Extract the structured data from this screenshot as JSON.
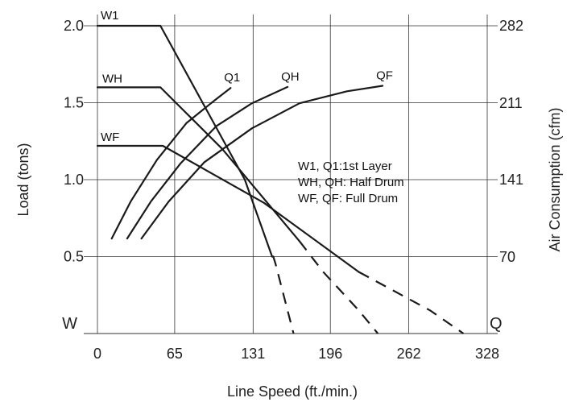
{
  "chart_data": {
    "type": "line",
    "title": "",
    "xlabel": "Line Speed (ft./min.)",
    "ylabel": "Load (tons)",
    "y2label": "Air Consumption (cfm)",
    "xlim": [
      0,
      328
    ],
    "ylim": [
      0,
      2.0
    ],
    "y2lim": [
      0,
      282
    ],
    "x_ticks": [
      "0",
      "65",
      "131",
      "196",
      "262",
      "328"
    ],
    "y_ticks": [
      "0.5",
      "1.0",
      "1.5",
      "2.0"
    ],
    "y2_ticks": [
      "70",
      "141",
      "211",
      "282"
    ],
    "grid": true,
    "corner_left": "W",
    "corner_right": "Q",
    "notes": [
      "W1, Q1:1st Layer",
      "WH, QH: Half Drum",
      "WF, QF: Full Drum"
    ],
    "series": [
      {
        "name": "W1",
        "axis": "left",
        "solid": [
          [
            0,
            2.0
          ],
          [
            53,
            2.0
          ],
          [
            124,
            1.0
          ],
          [
            147,
            0.5
          ]
        ],
        "dashed": [
          [
            147,
            0.5
          ],
          [
            148,
            0.5
          ],
          [
            150,
            0.45
          ],
          [
            155,
            0.3
          ],
          [
            160,
            0.15
          ],
          [
            165,
            0.0
          ]
        ],
        "color": "#1a1a1a"
      },
      {
        "name": "WH",
        "axis": "left",
        "solid": [
          [
            0,
            1.6
          ],
          [
            53,
            1.6
          ],
          [
            105,
            1.2
          ],
          [
            170,
            0.6
          ]
        ],
        "dashed": [
          [
            170,
            0.6
          ],
          [
            190,
            0.4
          ],
          [
            220,
            0.15
          ],
          [
            236,
            0.0
          ]
        ],
        "color": "#1a1a1a"
      },
      {
        "name": "WF",
        "axis": "left",
        "solid": [
          [
            0,
            1.22
          ],
          [
            55,
            1.22
          ],
          [
            140,
            0.85
          ],
          [
            220,
            0.4
          ]
        ],
        "dashed": [
          [
            220,
            0.4
          ],
          [
            280,
            0.15
          ],
          [
            308,
            0.0
          ]
        ],
        "color": "#1a1a1a"
      },
      {
        "name": "Q1",
        "axis": "right",
        "solid": [
          [
            12,
            87
          ],
          [
            28,
            121
          ],
          [
            50,
            159
          ],
          [
            75,
            193
          ],
          [
            99,
            214
          ],
          [
            112,
            225
          ]
        ],
        "color": "#1a1a1a"
      },
      {
        "name": "QH",
        "axis": "right",
        "solid": [
          [
            25,
            87
          ],
          [
            45,
            121
          ],
          [
            70,
            156
          ],
          [
            100,
            190
          ],
          [
            130,
            211
          ],
          [
            160,
            226
          ]
        ],
        "color": "#1a1a1a"
      },
      {
        "name": "QF",
        "axis": "right",
        "solid": [
          [
            37,
            87
          ],
          [
            60,
            121
          ],
          [
            90,
            157
          ],
          [
            130,
            188
          ],
          [
            170,
            211
          ],
          [
            210,
            222
          ],
          [
            240,
            227
          ]
        ],
        "color": "#1a1a1a"
      }
    ]
  }
}
